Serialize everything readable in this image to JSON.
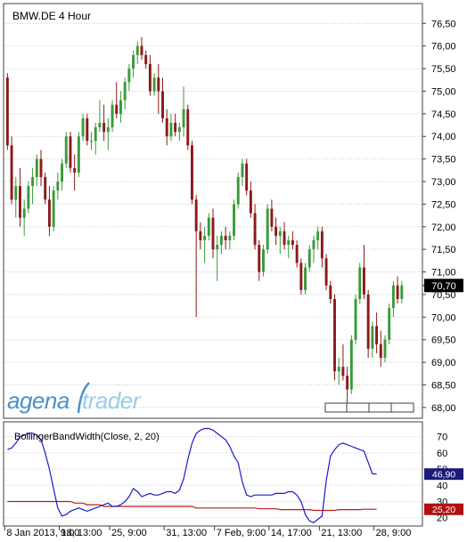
{
  "colors": {
    "up": "#3a9a3a",
    "down": "#8b1a1a",
    "bb_width_line": "#1a1ad0",
    "signal_line": "#c01818",
    "grid": "#c8c8c8",
    "frame": "#404040",
    "last_price_bg": "#000000",
    "bbw_badge_bg": "#1a1a7a",
    "signal_badge_bg": "#b01010",
    "logo_blue": "#4a90c8",
    "logo_light": "#9ccbe8"
  },
  "logo": {
    "part1": "agena",
    "part2": "trader"
  },
  "chart_data": [
    {
      "type": "candlestick",
      "title": "BMW.DE 4 Hour",
      "ylim": [
        67.8,
        76.9
      ],
      "yticks": [
        "76,50",
        "76,00",
        "75,50",
        "75,00",
        "74,50",
        "74,00",
        "73,50",
        "73,00",
        "72,50",
        "72,00",
        "71,50",
        "71,00",
        "70,50",
        "70,00",
        "69,50",
        "69,00",
        "68,50",
        "68,00"
      ],
      "ytick_values": [
        76.5,
        76.0,
        75.5,
        75.0,
        74.5,
        74.0,
        73.5,
        73.0,
        72.5,
        72.0,
        71.5,
        71.0,
        70.5,
        70.0,
        69.5,
        69.0,
        68.5,
        68.0
      ],
      "last_price_label": "70,70",
      "last_price": 70.7,
      "bars_visible": 95,
      "candles": [
        [
          75.3,
          75.4,
          73.7,
          73.8
        ],
        [
          73.8,
          74.0,
          72.5,
          72.6
        ],
        [
          72.6,
          73.1,
          72.2,
          72.9
        ],
        [
          72.9,
          73.3,
          72.0,
          72.2
        ],
        [
          72.2,
          72.6,
          71.8,
          72.4
        ],
        [
          72.4,
          73.0,
          72.3,
          72.9
        ],
        [
          72.9,
          73.3,
          72.5,
          73.1
        ],
        [
          73.1,
          73.6,
          72.9,
          73.5
        ],
        [
          73.5,
          73.7,
          72.9,
          73.1
        ],
        [
          73.1,
          73.2,
          72.5,
          72.6
        ],
        [
          72.6,
          72.9,
          71.8,
          72.0
        ],
        [
          72.0,
          72.9,
          71.9,
          72.8
        ],
        [
          72.8,
          73.2,
          72.6,
          73.0
        ],
        [
          73.0,
          73.5,
          72.8,
          73.4
        ],
        [
          73.4,
          74.1,
          73.3,
          74.0
        ],
        [
          74.0,
          74.1,
          73.2,
          73.3
        ],
        [
          73.3,
          73.6,
          72.8,
          73.2
        ],
        [
          73.2,
          74.1,
          73.1,
          74.0
        ],
        [
          74.0,
          74.5,
          73.9,
          74.4
        ],
        [
          74.4,
          74.5,
          73.8,
          73.9
        ],
        [
          73.9,
          74.1,
          73.7,
          73.9
        ],
        [
          73.9,
          74.3,
          73.6,
          74.2
        ],
        [
          74.2,
          74.8,
          74.1,
          74.3
        ],
        [
          74.3,
          74.7,
          73.9,
          74.1
        ],
        [
          74.1,
          74.4,
          73.7,
          74.2
        ],
        [
          74.2,
          74.8,
          74.1,
          74.7
        ],
        [
          74.7,
          75.2,
          74.4,
          74.5
        ],
        [
          74.5,
          75.0,
          74.3,
          74.8
        ],
        [
          74.8,
          75.3,
          74.6,
          75.2
        ],
        [
          75.2,
          75.6,
          75.0,
          75.5
        ],
        [
          75.5,
          75.9,
          75.3,
          75.8
        ],
        [
          75.8,
          76.1,
          75.6,
          76.0
        ],
        [
          76.0,
          76.2,
          75.7,
          75.8
        ],
        [
          75.8,
          75.9,
          75.5,
          75.6
        ],
        [
          75.6,
          75.8,
          74.9,
          75.0
        ],
        [
          75.0,
          75.4,
          74.9,
          75.3
        ],
        [
          75.3,
          75.6,
          74.5,
          75.0
        ],
        [
          75.0,
          75.3,
          74.3,
          74.4
        ],
        [
          74.4,
          74.6,
          73.8,
          74.0
        ],
        [
          74.0,
          74.5,
          73.9,
          74.3
        ],
        [
          74.3,
          74.5,
          74.0,
          74.1
        ],
        [
          74.1,
          74.3,
          73.9,
          74.2
        ],
        [
          74.2,
          75.1,
          74.0,
          74.6
        ],
        [
          74.6,
          74.7,
          73.7,
          73.8
        ],
        [
          73.8,
          73.9,
          72.5,
          72.6
        ],
        [
          72.6,
          72.7,
          70.0,
          71.9
        ],
        [
          71.9,
          72.1,
          71.5,
          71.7
        ],
        [
          71.7,
          72.0,
          71.2,
          71.8
        ],
        [
          71.8,
          72.3,
          71.7,
          72.2
        ],
        [
          72.2,
          72.4,
          71.3,
          71.5
        ],
        [
          71.5,
          71.8,
          70.8,
          71.6
        ],
        [
          71.6,
          71.9,
          71.4,
          71.8
        ],
        [
          71.8,
          72.0,
          71.5,
          71.7
        ],
        [
          71.7,
          71.9,
          71.5,
          71.8
        ],
        [
          71.8,
          72.6,
          71.7,
          72.5
        ],
        [
          72.5,
          73.2,
          72.4,
          73.1
        ],
        [
          73.1,
          73.5,
          72.9,
          73.4
        ],
        [
          73.4,
          73.5,
          72.7,
          72.8
        ],
        [
          72.8,
          73.0,
          72.2,
          72.3
        ],
        [
          72.3,
          72.5,
          71.5,
          71.6
        ],
        [
          71.6,
          71.7,
          70.8,
          71.0
        ],
        [
          71.0,
          71.6,
          70.9,
          71.5
        ],
        [
          71.5,
          72.5,
          71.4,
          72.4
        ],
        [
          72.4,
          72.6,
          71.9,
          72.0
        ],
        [
          72.0,
          72.2,
          71.6,
          71.8
        ],
        [
          71.8,
          72.0,
          71.4,
          71.9
        ],
        [
          71.9,
          72.1,
          71.5,
          71.6
        ],
        [
          71.6,
          71.8,
          71.3,
          71.7
        ],
        [
          71.7,
          71.9,
          71.5,
          71.6
        ],
        [
          71.6,
          71.7,
          71.1,
          71.2
        ],
        [
          71.2,
          71.3,
          70.5,
          70.6
        ],
        [
          70.6,
          71.2,
          70.5,
          71.1
        ],
        [
          71.1,
          71.6,
          71.0,
          71.5
        ],
        [
          71.5,
          71.8,
          71.2,
          71.7
        ],
        [
          71.7,
          72.0,
          71.5,
          71.9
        ],
        [
          71.9,
          72.0,
          71.1,
          71.3
        ],
        [
          71.3,
          71.4,
          70.6,
          70.7
        ],
        [
          70.7,
          70.8,
          70.3,
          70.4
        ],
        [
          70.4,
          70.5,
          68.6,
          68.8
        ],
        [
          68.8,
          69.1,
          68.5,
          68.9
        ],
        [
          68.9,
          69.4,
          68.6,
          68.7
        ],
        [
          68.7,
          68.9,
          68.0,
          68.4
        ],
        [
          68.4,
          69.6,
          68.3,
          69.5
        ],
        [
          69.5,
          70.5,
          69.4,
          70.4
        ],
        [
          70.4,
          71.2,
          70.3,
          71.1
        ],
        [
          71.1,
          71.6,
          70.4,
          70.5
        ],
        [
          70.5,
          70.6,
          69.1,
          69.3
        ],
        [
          69.3,
          69.9,
          69.1,
          69.8
        ],
        [
          69.8,
          70.1,
          69.2,
          69.4
        ],
        [
          69.4,
          69.7,
          68.9,
          69.1
        ],
        [
          69.1,
          69.6,
          69.0,
          69.5
        ],
        [
          69.5,
          70.3,
          69.4,
          70.2
        ],
        [
          70.2,
          70.8,
          70.0,
          70.7
        ],
        [
          70.7,
          70.9,
          70.3,
          70.4
        ],
        [
          70.4,
          70.8,
          70.3,
          70.7
        ]
      ]
    },
    {
      "type": "line",
      "title": "BollingerBandWidth(Close, 2, 20)",
      "ylim": [
        16,
        78
      ],
      "yticks": [
        "70",
        "60",
        "50",
        "40",
        "30",
        "20"
      ],
      "ytick_values": [
        70,
        60,
        50,
        40,
        30,
        20
      ],
      "x_labels": [
        "8 Jan 2013, 9:00",
        "18, 13:00",
        "25, 9:00",
        "31, 13:00",
        "7 Feb, 9:00",
        "14, 17:00",
        "21, 13:00",
        "28, 9:00"
      ],
      "x_label_bar_index": [
        0,
        13,
        25,
        38,
        50,
        63,
        75,
        88
      ],
      "series": [
        {
          "label_value": "46,90",
          "values": [
            62,
            63,
            66,
            70,
            71,
            72,
            72,
            71,
            68,
            60,
            50,
            38,
            26,
            21,
            22,
            24,
            25,
            26,
            25,
            24,
            25,
            26,
            27,
            28,
            29,
            27,
            27,
            28,
            30,
            33,
            38,
            36,
            33,
            34,
            35,
            34,
            34,
            35,
            36,
            36,
            35,
            37,
            44,
            56,
            66,
            72,
            74,
            75,
            75,
            74,
            72,
            70,
            68,
            64,
            58,
            54,
            42,
            34,
            33,
            34,
            34,
            34,
            34,
            34,
            35,
            35,
            35,
            36,
            36,
            34,
            30,
            22,
            18,
            17,
            19,
            21,
            43,
            58,
            62,
            65,
            66,
            65,
            64,
            63,
            62,
            61,
            54,
            47,
            47
          ]
        },
        {
          "label_value": "25,20",
          "values": [
            30,
            30,
            30,
            30,
            30,
            30,
            30,
            30,
            30,
            30,
            30,
            30,
            30,
            30,
            30,
            30,
            29,
            29,
            29,
            28,
            28,
            28,
            28,
            27,
            27,
            27,
            27,
            27,
            27,
            27,
            27,
            27,
            27,
            27,
            27,
            27,
            27,
            27,
            27,
            27,
            27,
            27,
            27,
            27,
            27,
            26,
            26,
            26,
            26,
            26,
            26,
            26,
            26,
            26,
            26,
            26,
            26,
            26,
            26,
            26,
            25.5,
            25.5,
            25.5,
            25.5,
            25.5,
            25,
            25,
            25,
            25,
            25,
            25,
            25,
            25,
            24.5,
            24.5,
            24.5,
            24.5,
            24.5,
            24.5,
            25,
            25,
            25,
            25,
            25,
            25,
            25.2,
            25.2,
            25.2,
            25.2
          ]
        }
      ]
    }
  ]
}
